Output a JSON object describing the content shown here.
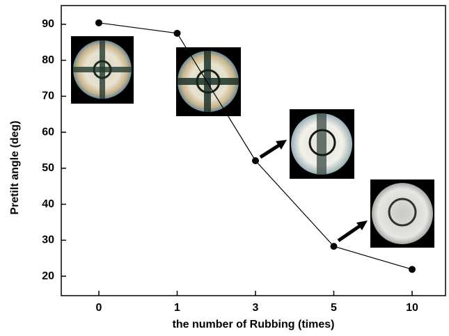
{
  "chart_data": {
    "type": "line",
    "x_label": "the number of Rubbing (times)",
    "y_label": "Pretilt angle (deg)",
    "categories": [
      "0",
      "1",
      "3",
      "5",
      "10"
    ],
    "values": [
      90.4,
      87.5,
      52.1,
      28.3,
      21.9
    ],
    "color": "#000000",
    "ylim": [
      14.6,
      95.2
    ],
    "yticks": [
      20,
      30,
      40,
      50,
      60,
      70,
      80,
      90
    ],
    "grid": false
  }
}
